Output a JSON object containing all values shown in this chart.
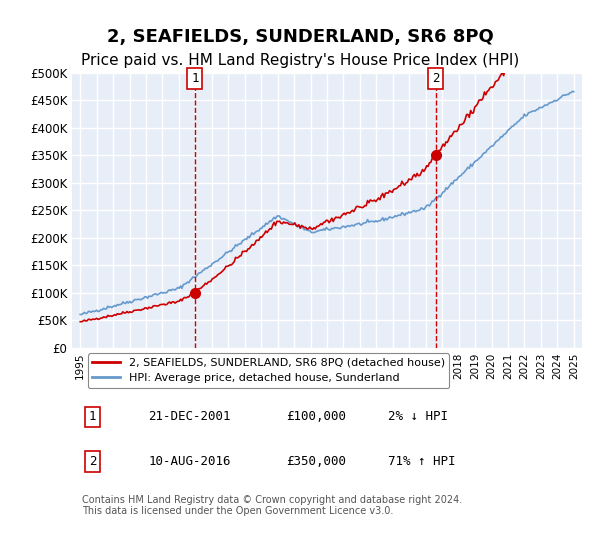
{
  "title": "2, SEAFIELDS, SUNDERLAND, SR6 8PQ",
  "subtitle": "Price paid vs. HM Land Registry's House Price Index (HPI)",
  "title_fontsize": 13,
  "subtitle_fontsize": 11,
  "bg_color": "#e8eef8",
  "plot_bg_color": "#e8eef8",
  "grid_color": "#ffffff",
  "ylim": [
    0,
    500000
  ],
  "yticks": [
    0,
    50000,
    100000,
    150000,
    200000,
    250000,
    300000,
    350000,
    400000,
    450000,
    500000
  ],
  "ytick_labels": [
    "£0",
    "£50K",
    "£100K",
    "£150K",
    "£200K",
    "£250K",
    "£300K",
    "£350K",
    "£400K",
    "£450K",
    "£500K"
  ],
  "sale1_date": 2001.97,
  "sale1_price": 100000,
  "sale1_label": "1",
  "sale1_text": "21-DEC-2001",
  "sale1_amount": "£100,000",
  "sale1_hpi": "2% ↓ HPI",
  "sale2_date": 2016.6,
  "sale2_price": 350000,
  "sale2_label": "2",
  "sale2_text": "10-AUG-2016",
  "sale2_amount": "£350,000",
  "sale2_hpi": "71% ↑ HPI",
  "legend_line1": "2, SEAFIELDS, SUNDERLAND, SR6 8PQ (detached house)",
  "legend_line2": "HPI: Average price, detached house, Sunderland",
  "footnote": "Contains HM Land Registry data © Crown copyright and database right 2024.\nThis data is licensed under the Open Government Licence v3.0.",
  "hpi_color": "#6699cc",
  "sale_color": "#cc0000",
  "sale_marker_color": "#cc0000",
  "vline_color": "#cc0000"
}
